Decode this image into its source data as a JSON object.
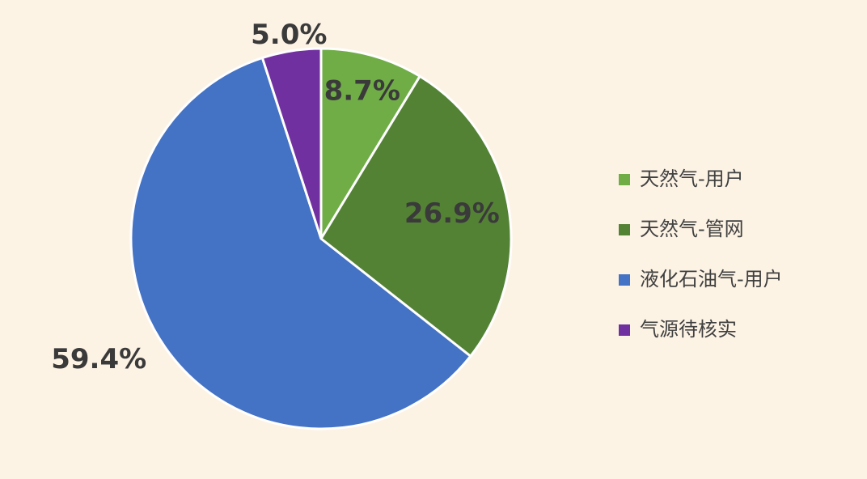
{
  "chart_data": {
    "type": "pie",
    "categories": [
      "天然气-用户",
      "天然气-管网",
      "液化石油气-用户",
      "气源待核实"
    ],
    "values": [
      8.7,
      26.9,
      59.4,
      5.0
    ],
    "value_labels": [
      "8.7%",
      "26.9%",
      "59.4%",
      "5.0%"
    ],
    "colors": [
      "#70ad47",
      "#548235",
      "#4472c4",
      "#7030a0"
    ],
    "legend": "right"
  }
}
